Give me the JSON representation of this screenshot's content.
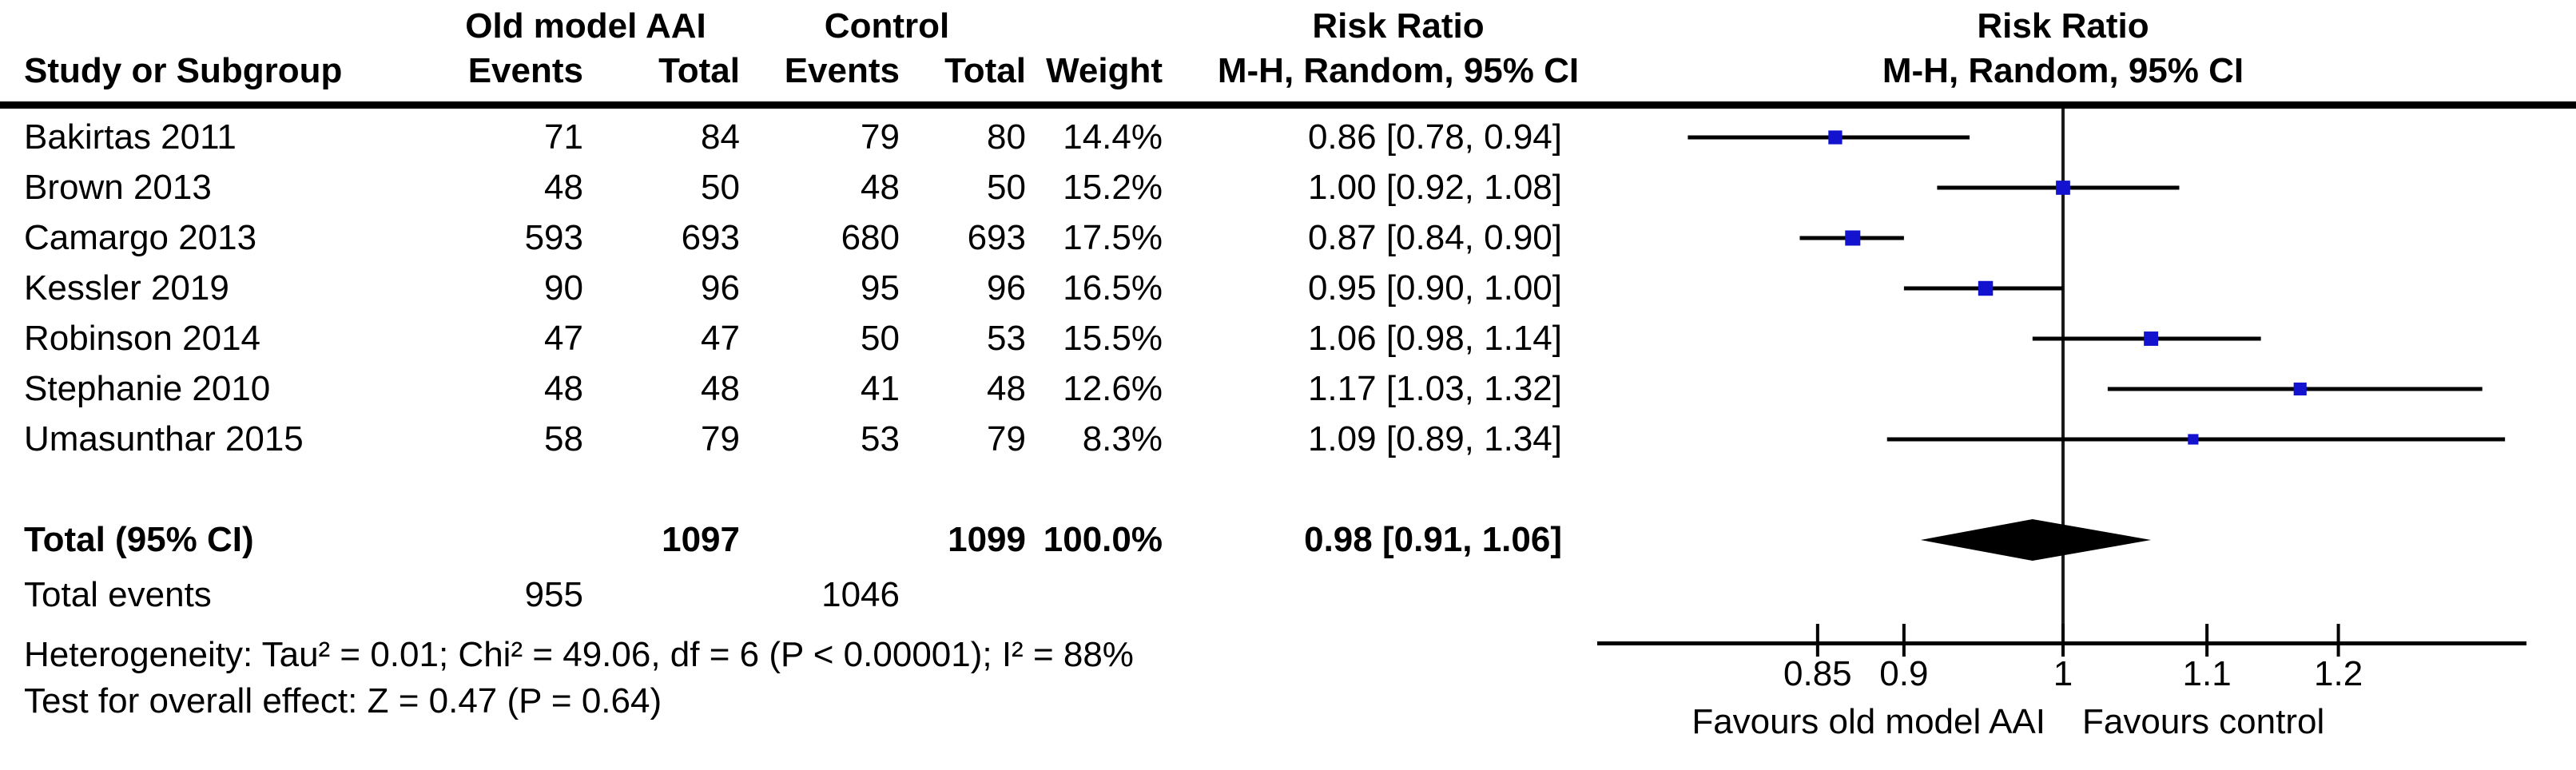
{
  "table": {
    "group_headers": {
      "experimental": "Old model AAI",
      "control": "Control",
      "effect": "Risk Ratio",
      "plot_effect": "Risk Ratio"
    },
    "column_headers": {
      "study": "Study or Subgroup",
      "events1": "Events",
      "total1": "Total",
      "events2": "Events",
      "total2": "Total",
      "weight": "Weight",
      "mh": "M-H, Random, 95% CI",
      "plot_mh": "M-H, Random, 95% CI"
    }
  },
  "chart_data": {
    "type": "forest",
    "effect_measure": "Risk Ratio",
    "method": "M-H, Random, 95% CI",
    "x_scale": "log",
    "ticks": [
      0.85,
      0.9,
      1,
      1.1,
      1.2
    ],
    "tick_labels": [
      "0.85",
      "0.9",
      "1",
      "1.1",
      "1.2"
    ],
    "null_value": 1,
    "studies": [
      {
        "name": "Bakirtas 2011",
        "events1": "71",
        "total1": "84",
        "events2": "79",
        "total2": "80",
        "weight_text": "14.4%",
        "weight": 14.4,
        "rr": 0.86,
        "lo": 0.78,
        "hi": 0.94,
        "rr_text": "0.86 [0.78, 0.94]"
      },
      {
        "name": "Brown 2013",
        "events1": "48",
        "total1": "50",
        "events2": "48",
        "total2": "50",
        "weight_text": "15.2%",
        "weight": 15.2,
        "rr": 1.0,
        "lo": 0.92,
        "hi": 1.08,
        "rr_text": "1.00 [0.92, 1.08]"
      },
      {
        "name": "Camargo 2013",
        "events1": "593",
        "total1": "693",
        "events2": "680",
        "total2": "693",
        "weight_text": "17.5%",
        "weight": 17.5,
        "rr": 0.87,
        "lo": 0.84,
        "hi": 0.9,
        "rr_text": "0.87 [0.84, 0.90]"
      },
      {
        "name": "Kessler 2019",
        "events1": "90",
        "total1": "96",
        "events2": "95",
        "total2": "96",
        "weight_text": "16.5%",
        "weight": 16.5,
        "rr": 0.95,
        "lo": 0.9,
        "hi": 1.0,
        "rr_text": "0.95 [0.90, 1.00]"
      },
      {
        "name": "Robinson 2014",
        "events1": "47",
        "total1": "47",
        "events2": "50",
        "total2": "53",
        "weight_text": "15.5%",
        "weight": 15.5,
        "rr": 1.06,
        "lo": 0.98,
        "hi": 1.14,
        "rr_text": "1.06 [0.98, 1.14]"
      },
      {
        "name": "Stephanie 2010",
        "events1": "48",
        "total1": "48",
        "events2": "41",
        "total2": "48",
        "weight_text": "12.6%",
        "weight": 12.6,
        "rr": 1.17,
        "lo": 1.03,
        "hi": 1.32,
        "rr_text": "1.17 [1.03, 1.32]"
      },
      {
        "name": "Umasunthar 2015",
        "events1": "58",
        "total1": "79",
        "events2": "53",
        "total2": "79",
        "weight_text": "8.3%",
        "weight": 8.3,
        "rr": 1.09,
        "lo": 0.89,
        "hi": 1.34,
        "rr_text": "1.09 [0.89, 1.34]"
      }
    ],
    "total": {
      "label": "Total (95% CI)",
      "total1": "1097",
      "total2": "1099",
      "weight_text": "100.0%",
      "rr": 0.98,
      "lo": 0.91,
      "hi": 1.06,
      "rr_text": "0.98 [0.91, 1.06]"
    },
    "total_events": {
      "label": "Total events",
      "events1": "955",
      "events2": "1046"
    },
    "heterogeneity": "Heterogeneity: Tau² = 0.01; Chi² = 49.06, df = 6 (P < 0.00001); I² = 88%",
    "overall_effect": "Test for overall effect: Z = 0.47 (P = 0.64)",
    "favours_left": "Favours old model AAI",
    "favours_right": "Favours control",
    "marker_color": "#1212CF",
    "line_color": "#000000",
    "diamond_color": "#000000"
  }
}
